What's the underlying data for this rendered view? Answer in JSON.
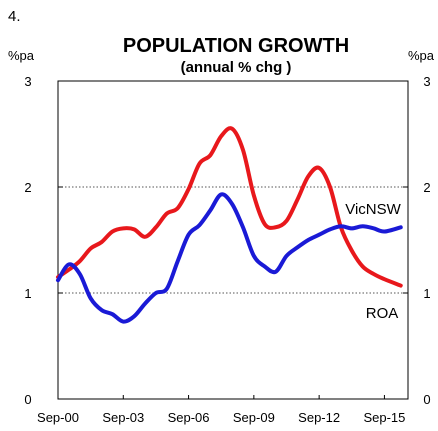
{
  "figure_number": "4.",
  "chart_data": {
    "type": "line",
    "title": "POPULATION GROWTH",
    "subtitle": "(annual % chg )",
    "y_unit_left": "%pa",
    "y_unit_right": "%pa",
    "ylim": [
      0,
      3
    ],
    "y_ticks": [
      "0",
      "1",
      "2",
      "3"
    ],
    "x_tick_labels": [
      "Sep-00",
      "Sep-03",
      "Sep-06",
      "Sep-09",
      "Sep-12",
      "Sep-15"
    ],
    "grid": "dotted horizontal lines at 1 and 2",
    "legend": "inline labels",
    "series": [
      {
        "name": "ROA",
        "color": "#e8181c",
        "points": [
          [
            "Sep-00",
            1.15
          ],
          [
            "Mar-01",
            1.22
          ],
          [
            "Sep-01",
            1.3
          ],
          [
            "Mar-02",
            1.42
          ],
          [
            "Sep-02",
            1.48
          ],
          [
            "Mar-03",
            1.58
          ],
          [
            "Sep-03",
            1.61
          ],
          [
            "Mar-04",
            1.6
          ],
          [
            "Sep-04",
            1.53
          ],
          [
            "Mar-05",
            1.62
          ],
          [
            "Sep-05",
            1.75
          ],
          [
            "Mar-06",
            1.8
          ],
          [
            "Sep-06",
            1.98
          ],
          [
            "Mar-07",
            2.22
          ],
          [
            "Sep-07",
            2.3
          ],
          [
            "Mar-08",
            2.48
          ],
          [
            "Sep-08",
            2.55
          ],
          [
            "Mar-09",
            2.35
          ],
          [
            "Sep-09",
            1.92
          ],
          [
            "Mar-10",
            1.65
          ],
          [
            "Sep-10",
            1.62
          ],
          [
            "Mar-11",
            1.68
          ],
          [
            "Sep-11",
            1.88
          ],
          [
            "Mar-12",
            2.1
          ],
          [
            "Sep-12",
            2.18
          ],
          [
            "Mar-13",
            2.0
          ],
          [
            "Sep-13",
            1.62
          ],
          [
            "Mar-14",
            1.4
          ],
          [
            "Sep-14",
            1.25
          ],
          [
            "Mar-15",
            1.18
          ],
          [
            "Sep-15",
            1.13
          ],
          [
            "Jun-16",
            1.07
          ]
        ]
      },
      {
        "name": "VicNSW",
        "color": "#1a1ad6",
        "points": [
          [
            "Sep-00",
            1.12
          ],
          [
            "Mar-01",
            1.27
          ],
          [
            "Sep-01",
            1.18
          ],
          [
            "Mar-02",
            0.95
          ],
          [
            "Sep-02",
            0.84
          ],
          [
            "Mar-03",
            0.8
          ],
          [
            "Sep-03",
            0.73
          ],
          [
            "Mar-04",
            0.78
          ],
          [
            "Sep-04",
            0.9
          ],
          [
            "Mar-05",
            1.0
          ],
          [
            "Sep-05",
            1.04
          ],
          [
            "Mar-06",
            1.3
          ],
          [
            "Sep-06",
            1.55
          ],
          [
            "Mar-07",
            1.64
          ],
          [
            "Sep-07",
            1.78
          ],
          [
            "Mar-08",
            1.93
          ],
          [
            "Sep-08",
            1.84
          ],
          [
            "Mar-09",
            1.62
          ],
          [
            "Sep-09",
            1.35
          ],
          [
            "Mar-10",
            1.25
          ],
          [
            "Sep-10",
            1.2
          ],
          [
            "Mar-11",
            1.35
          ],
          [
            "Sep-11",
            1.43
          ],
          [
            "Mar-12",
            1.5
          ],
          [
            "Sep-12",
            1.55
          ],
          [
            "Mar-13",
            1.6
          ],
          [
            "Sep-13",
            1.63
          ],
          [
            "Mar-14",
            1.61
          ],
          [
            "Sep-14",
            1.63
          ],
          [
            "Mar-15",
            1.61
          ],
          [
            "Sep-15",
            1.58
          ],
          [
            "Jun-16",
            1.62
          ]
        ]
      }
    ]
  }
}
